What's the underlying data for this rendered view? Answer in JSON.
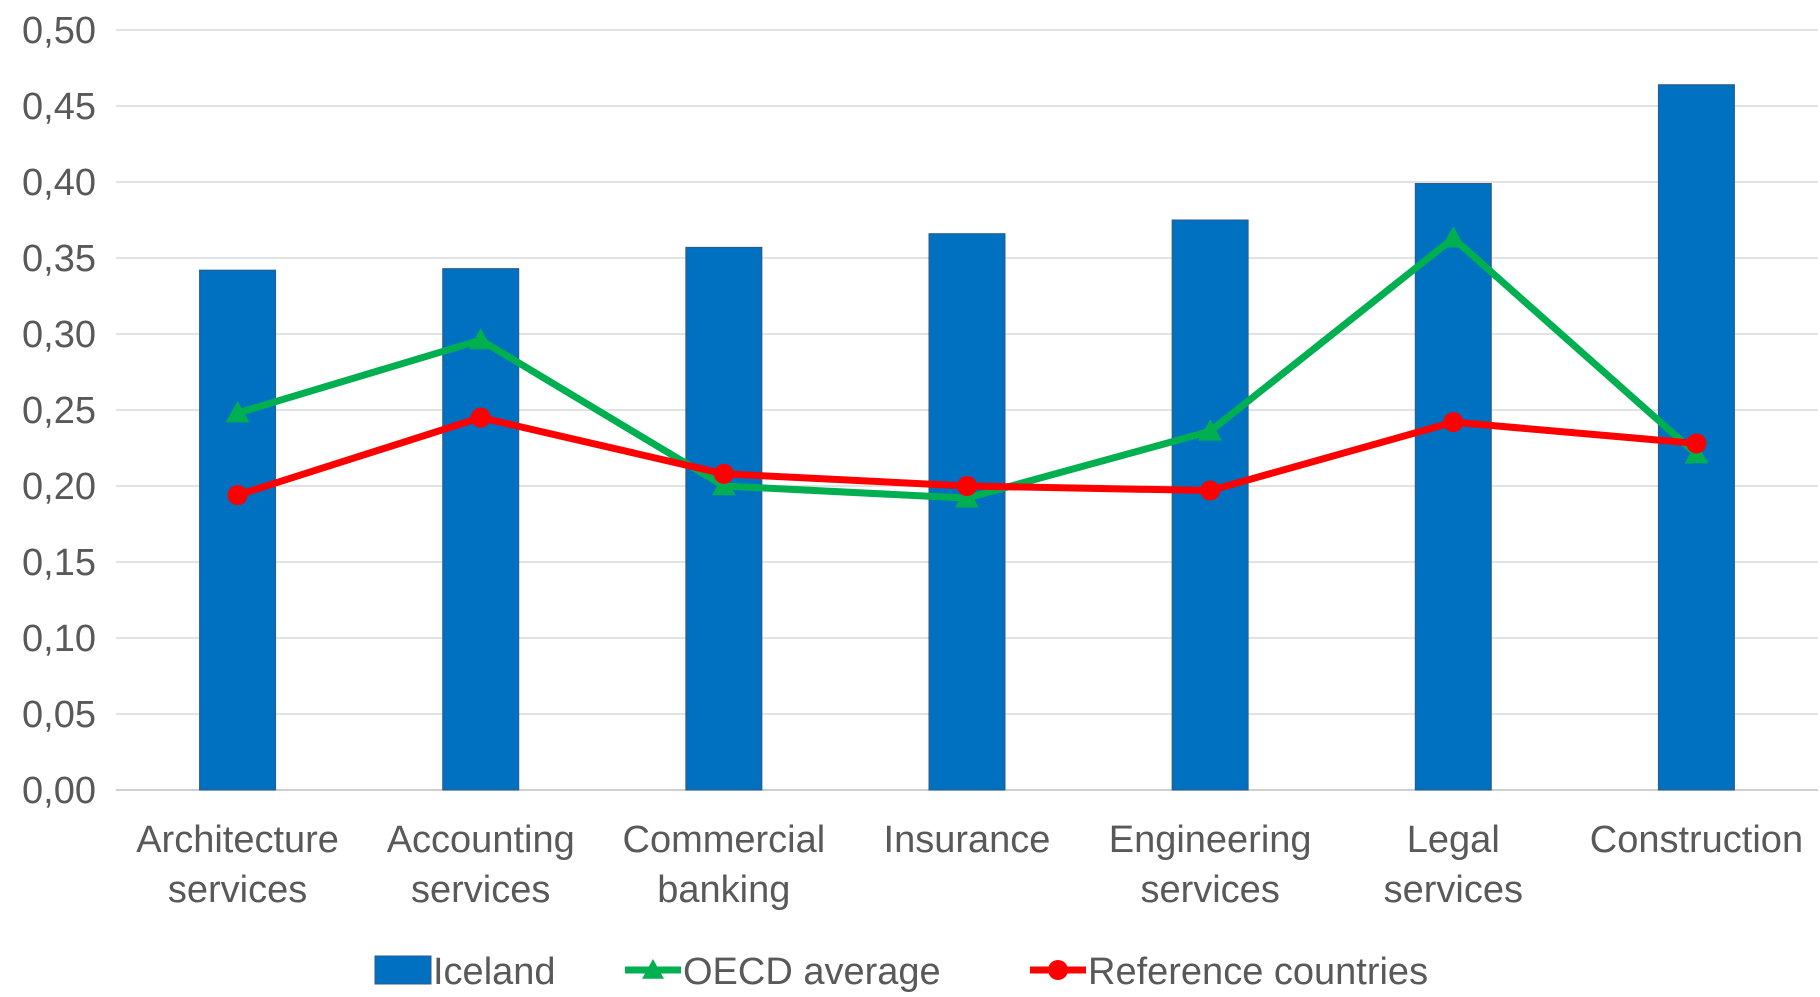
{
  "chart_data": {
    "type": "bar",
    "categories": [
      [
        "Architecture",
        "services"
      ],
      [
        "Accounting",
        "services"
      ],
      [
        "Commercial",
        "banking"
      ],
      [
        "Insurance"
      ],
      [
        "Engineering",
        "services"
      ],
      [
        "Legal",
        "services"
      ],
      [
        "Construction"
      ]
    ],
    "ylim": [
      0,
      0.5
    ],
    "y_ticks": [
      "0,00",
      "0,05",
      "0,10",
      "0,15",
      "0,20",
      "0,25",
      "0,30",
      "0,35",
      "0,40",
      "0,45",
      "0,50"
    ],
    "y_tick_values": [
      0,
      0.05,
      0.1,
      0.15,
      0.2,
      0.25,
      0.3,
      0.35,
      0.4,
      0.45,
      0.5
    ],
    "grid": true,
    "legend_position": "bottom",
    "series": [
      {
        "name": "Iceland",
        "type": "bar",
        "color": "#0070C0",
        "values": [
          0.342,
          0.343,
          0.357,
          0.366,
          0.375,
          0.399,
          0.464
        ]
      },
      {
        "name": "OECD average",
        "type": "line",
        "marker": "triangle",
        "color": "#00B050",
        "values": [
          0.248,
          0.296,
          0.2,
          0.192,
          0.236,
          0.363,
          0.221
        ]
      },
      {
        "name": "Reference countries",
        "type": "line",
        "marker": "circle",
        "color": "#FF0000",
        "values": [
          0.194,
          0.245,
          0.208,
          0.2,
          0.197,
          0.242,
          0.228
        ]
      }
    ]
  }
}
